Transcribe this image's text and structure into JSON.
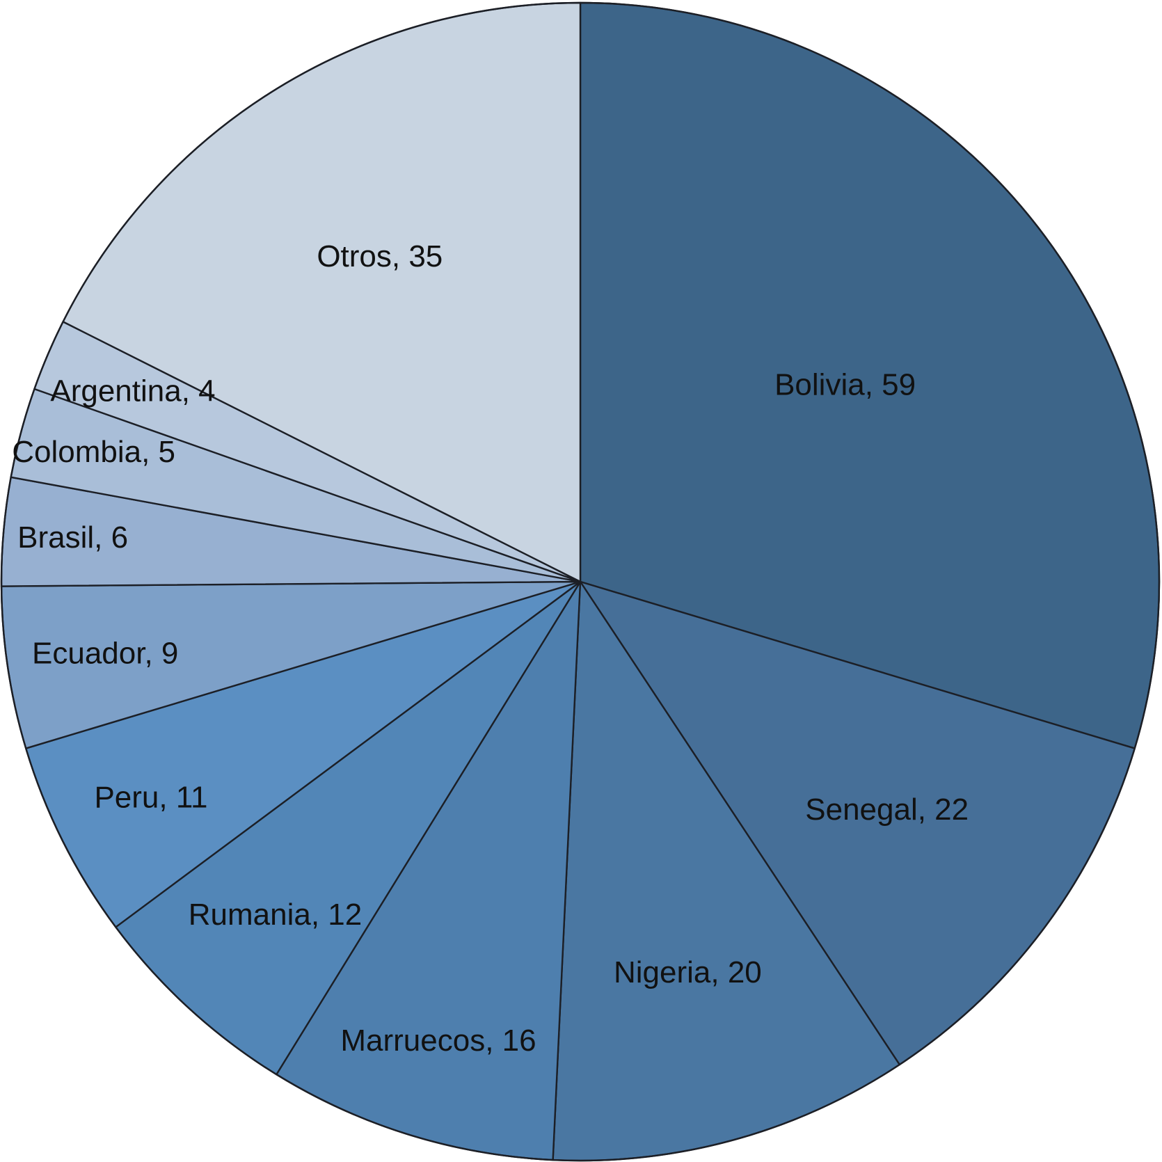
{
  "chart_data": {
    "type": "pie",
    "start": "12 o'clock",
    "direction": "clockwise",
    "slices": [
      {
        "label": "Bolivia, 59",
        "category": "Bolivia",
        "value": 59,
        "color": "#3d6589"
      },
      {
        "label": "Senegal, 22",
        "category": "Senegal",
        "value": 22,
        "color": "#466f98"
      },
      {
        "label": "Nigeria, 20",
        "category": "Nigeria",
        "value": 20,
        "color": "#4a77a2"
      },
      {
        "label": "Marruecos, 16",
        "category": "Marruecos",
        "value": 16,
        "color": "#4e7fae"
      },
      {
        "label": "Rumania, 12",
        "category": "Rumania",
        "value": 12,
        "color": "#5286b7"
      },
      {
        "label": "Peru, 11",
        "category": "Peru",
        "value": 11,
        "color": "#5b8fc2"
      },
      {
        "label": "Ecuador, 9",
        "category": "Ecuador",
        "value": 9,
        "color": "#7da0c8"
      },
      {
        "label": "Brasil, 6",
        "category": "Brasil",
        "value": 6,
        "color": "#97b0d1"
      },
      {
        "label": "Colombia, 5",
        "category": "Colombia",
        "value": 5,
        "color": "#a9bed8"
      },
      {
        "label": "Argentina, 4",
        "category": "Argentina",
        "value": 4,
        "color": "#b7c8dd"
      },
      {
        "label": "Otros, 35",
        "category": "Otros",
        "value": 35,
        "color": "#c8d4e1"
      }
    ]
  }
}
